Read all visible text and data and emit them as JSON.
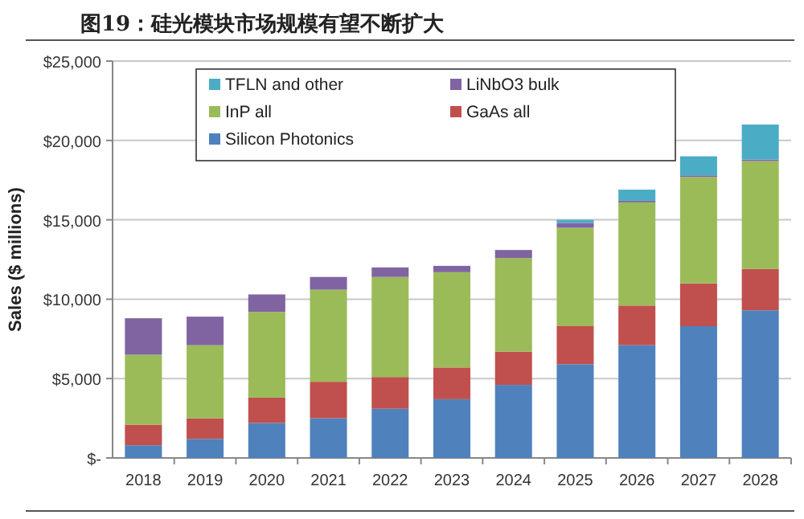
{
  "chart_data": {
    "type": "bar",
    "stacked": true,
    "title": "图19：硅光模块市场规模有望不断扩大",
    "ylabel": "Sales ($ millions)",
    "categories": [
      "2018",
      "2019",
      "2020",
      "2021",
      "2022",
      "2023",
      "2024",
      "2025",
      "2026",
      "2027",
      "2028"
    ],
    "series": [
      {
        "name": "Silicon Photonics",
        "color": "#4f81bd",
        "values": [
          800,
          1200,
          2200,
          2500,
          3100,
          3700,
          4600,
          5900,
          7100,
          8300,
          9300
        ]
      },
      {
        "name": "GaAs all",
        "color": "#c0504d",
        "values": [
          1300,
          1300,
          1600,
          2300,
          2000,
          2000,
          2100,
          2400,
          2500,
          2700,
          2600
        ]
      },
      {
        "name": "InP all",
        "color": "#9bbb59",
        "values": [
          4400,
          4600,
          5400,
          5800,
          6300,
          6000,
          5900,
          6200,
          6500,
          6700,
          6800
        ]
      },
      {
        "name": "LiNbO3 bulk",
        "color": "#8064a2",
        "values": [
          2300,
          1800,
          1100,
          800,
          600,
          400,
          500,
          300,
          100,
          100,
          100
        ]
      },
      {
        "name": "TFLN and other",
        "color": "#4bacc6",
        "values": [
          0,
          0,
          0,
          0,
          0,
          0,
          0,
          200,
          700,
          1200,
          2200
        ]
      }
    ],
    "ylim": [
      0,
      25000
    ],
    "yticks": [
      {
        "value": 0,
        "label": "$-"
      },
      {
        "value": 5000,
        "label": "$5,000"
      },
      {
        "value": 10000,
        "label": "$10,000"
      },
      {
        "value": 15000,
        "label": "$15,000"
      },
      {
        "value": 20000,
        "label": "$20,000"
      },
      {
        "value": 25000,
        "label": "$25,000"
      }
    ],
    "grid": "y",
    "legend": "top"
  }
}
